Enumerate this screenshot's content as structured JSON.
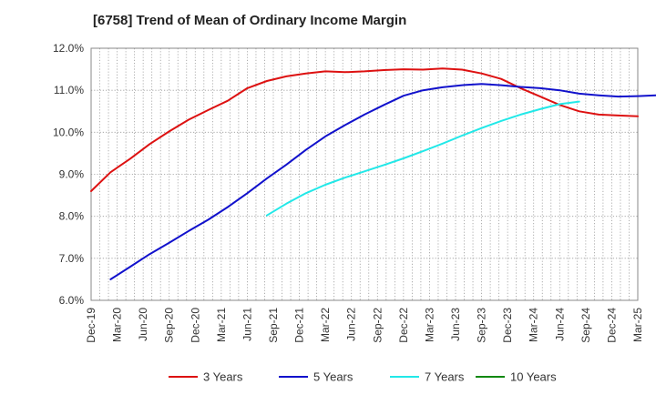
{
  "chart_data": {
    "type": "line",
    "title": "[6758]  Trend of Mean of Ordinary Income Margin",
    "xlabel": "",
    "ylabel": "",
    "ylim": [
      6.0,
      12.0
    ],
    "y_ticks": [
      "6.0%",
      "7.0%",
      "8.0%",
      "9.0%",
      "10.0%",
      "11.0%",
      "12.0%"
    ],
    "x_ticks": [
      "Dec-19",
      "Mar-20",
      "Jun-20",
      "Sep-20",
      "Dec-20",
      "Mar-21",
      "Jun-21",
      "Sep-21",
      "Dec-21",
      "Mar-22",
      "Jun-22",
      "Sep-22",
      "Dec-22",
      "Mar-23",
      "Jun-23",
      "Sep-23",
      "Dec-23",
      "Mar-24",
      "Jun-24",
      "Sep-24",
      "Dec-24",
      "Mar-25"
    ],
    "grid": true,
    "legend_position": "bottom",
    "series": [
      {
        "name": "3 Years",
        "color": "#dd1111",
        "start_index": 0,
        "values": [
          8.6,
          9.05,
          9.37,
          9.72,
          10.02,
          10.3,
          10.53,
          10.75,
          11.05,
          11.22,
          11.33,
          11.4,
          11.45,
          11.43,
          11.45,
          11.48,
          11.5,
          11.49,
          11.52,
          11.49,
          11.4,
          11.27,
          11.05,
          10.85,
          10.65,
          10.5,
          10.42,
          10.4,
          10.38
        ]
      },
      {
        "name": "5 Years",
        "color": "#1111cc",
        "start_index": 1,
        "values": [
          6.5,
          6.8,
          7.1,
          7.37,
          7.65,
          7.92,
          8.22,
          8.55,
          8.9,
          9.23,
          9.58,
          9.9,
          10.17,
          10.42,
          10.65,
          10.87,
          11.0,
          11.07,
          11.12,
          11.15,
          11.12,
          11.08,
          11.05,
          11.0,
          10.92,
          10.88,
          10.85,
          10.86,
          10.88
        ]
      },
      {
        "name": "7 Years",
        "color": "#22e8e8",
        "start_index": 9,
        "values": [
          8.02,
          8.3,
          8.55,
          8.75,
          8.92,
          9.07,
          9.22,
          9.38,
          9.55,
          9.73,
          9.92,
          10.1,
          10.27,
          10.42,
          10.55,
          10.67,
          10.73
        ]
      },
      {
        "name": "10 Years",
        "color": "#118811",
        "start_index": 0,
        "values": []
      }
    ]
  }
}
